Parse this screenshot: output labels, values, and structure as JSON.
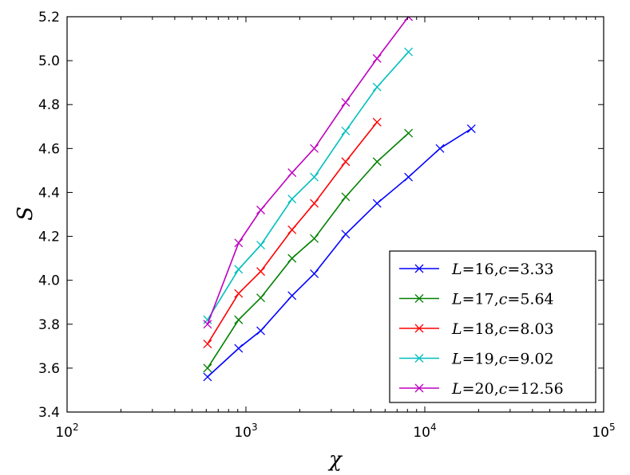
{
  "chart_data": {
    "type": "line",
    "title": "",
    "xlabel": "χ",
    "ylabel": "S",
    "x_scale": "log",
    "xlim": [
      100,
      100000
    ],
    "ylim": [
      3.4,
      5.2
    ],
    "x_ticks": [
      {
        "value": 100,
        "base": "10",
        "exp": "2"
      },
      {
        "value": 1000,
        "base": "10",
        "exp": "3"
      },
      {
        "value": 10000,
        "base": "10",
        "exp": "4"
      },
      {
        "value": 100000,
        "base": "10",
        "exp": "5"
      }
    ],
    "y_ticks": [
      {
        "value": 3.4,
        "label": "3.4"
      },
      {
        "value": 3.6,
        "label": "3.6"
      },
      {
        "value": 3.8,
        "label": "3.8"
      },
      {
        "value": 4.0,
        "label": "4.0"
      },
      {
        "value": 4.2,
        "label": "4.2"
      },
      {
        "value": 4.4,
        "label": "4.4"
      },
      {
        "value": 4.6,
        "label": "4.6"
      },
      {
        "value": 4.8,
        "label": "4.8"
      },
      {
        "value": 5.0,
        "label": "5.0"
      },
      {
        "value": 5.2,
        "label": "5.2"
      }
    ],
    "grid": false,
    "legend_position": "bottom-right",
    "marker": "x",
    "series": [
      {
        "name": "L=16, c=3.33",
        "L": "16",
        "c": "3.33",
        "color": "#0000ff",
        "x": [
          610,
          910,
          1210,
          1810,
          2410,
          3610,
          5410,
          8110,
          12160,
          18210
        ],
        "y": [
          3.56,
          3.69,
          3.77,
          3.93,
          4.03,
          4.21,
          4.35,
          4.47,
          4.6,
          4.69
        ]
      },
      {
        "name": "L=17, c=5.64",
        "L": "17",
        "c": "5.64",
        "color": "#008000",
        "x": [
          610,
          910,
          1210,
          1810,
          2410,
          3610,
          5410,
          8110
        ],
        "y": [
          3.6,
          3.82,
          3.92,
          4.1,
          4.19,
          4.38,
          4.54,
          4.67
        ]
      },
      {
        "name": "L=18, c=8.03",
        "L": "18",
        "c": "8.03",
        "color": "#ff0000",
        "x": [
          610,
          910,
          1210,
          1810,
          2410,
          3610,
          5410
        ],
        "y": [
          3.71,
          3.94,
          4.04,
          4.23,
          4.35,
          4.54,
          4.72
        ]
      },
      {
        "name": "L=19, c=9.02",
        "L": "19",
        "c": "9.02",
        "color": "#00bfbf",
        "x": [
          610,
          910,
          1210,
          1810,
          2410,
          3610,
          5410,
          8110
        ],
        "y": [
          3.82,
          4.05,
          4.16,
          4.37,
          4.47,
          4.68,
          4.88,
          5.04
        ]
      },
      {
        "name": "L=20, c=12.56",
        "L": "20",
        "c": "12.56",
        "color": "#bf00bf",
        "x": [
          610,
          910,
          1210,
          1810,
          2410,
          3610,
          5410,
          8110
        ],
        "y": [
          3.8,
          4.17,
          4.32,
          4.49,
          4.6,
          4.81,
          5.01,
          5.2
        ]
      }
    ]
  }
}
